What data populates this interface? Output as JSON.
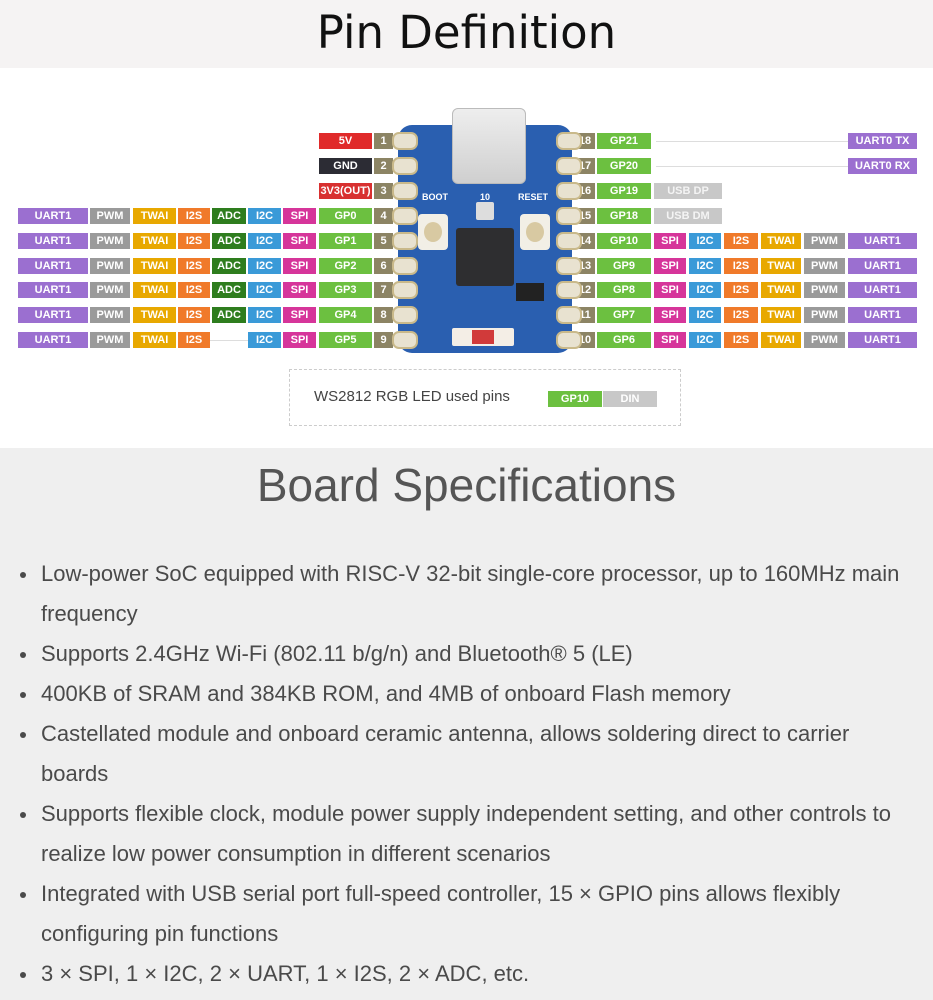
{
  "pin_definition": {
    "title": "Pin Definition",
    "colors": {
      "UART": "#9b6fd0",
      "PWM": "#9a9a9a",
      "TWAI": "#e8a800",
      "I2S": "#f07a2a",
      "ADC": "#2e7d1e",
      "I2C": "#3a9ad8",
      "SPI": "#d6359a",
      "GP": "#6cc040",
      "num": "#8c8464",
      "5V": "#e02a2a",
      "GND": "#2c2c34",
      "3V3": "#d83030",
      "USB": "#c8c8c8",
      "DIN": "#c8c8c8"
    },
    "board_labels": {
      "boot": "BOOT",
      "led": "10",
      "reset": "RESET"
    },
    "left_pins": [
      {
        "num": "1",
        "name": "5V",
        "funcs": []
      },
      {
        "num": "2",
        "name": "GND",
        "funcs": []
      },
      {
        "num": "3",
        "name": "3V3(OUT)",
        "funcs": []
      },
      {
        "num": "4",
        "name": "GP0",
        "funcs": [
          "UART1",
          "PWM",
          "TWAI",
          "I2S",
          "ADC",
          "I2C",
          "SPI"
        ]
      },
      {
        "num": "5",
        "name": "GP1",
        "funcs": [
          "UART1",
          "PWM",
          "TWAI",
          "I2S",
          "ADC",
          "I2C",
          "SPI"
        ]
      },
      {
        "num": "6",
        "name": "GP2",
        "funcs": [
          "UART1",
          "PWM",
          "TWAI",
          "I2S",
          "ADC",
          "I2C",
          "SPI"
        ]
      },
      {
        "num": "7",
        "name": "GP3",
        "funcs": [
          "UART1",
          "PWM",
          "TWAI",
          "I2S",
          "ADC",
          "I2C",
          "SPI"
        ]
      },
      {
        "num": "8",
        "name": "GP4",
        "funcs": [
          "UART1",
          "PWM",
          "TWAI",
          "I2S",
          "ADC",
          "I2C",
          "SPI"
        ]
      },
      {
        "num": "9",
        "name": "GP5",
        "funcs": [
          "UART1",
          "PWM",
          "TWAI",
          "I2S",
          null,
          "I2C",
          "SPI"
        ]
      }
    ],
    "right_pins": [
      {
        "num": "18",
        "name": "GP21",
        "funcs": [
          null,
          null,
          null,
          null,
          null,
          "UART0 TX"
        ]
      },
      {
        "num": "17",
        "name": "GP20",
        "funcs": [
          null,
          null,
          null,
          null,
          null,
          "UART0 RX"
        ]
      },
      {
        "num": "16",
        "name": "GP19",
        "funcs": [
          "USB DP"
        ]
      },
      {
        "num": "15",
        "name": "GP18",
        "funcs": [
          "USB DM"
        ]
      },
      {
        "num": "14",
        "name": "GP10",
        "funcs": [
          "SPI",
          "I2C",
          "I2S",
          "TWAI",
          "PWM",
          "UART1"
        ]
      },
      {
        "num": "13",
        "name": "GP9",
        "funcs": [
          "SPI",
          "I2C",
          "I2S",
          "TWAI",
          "PWM",
          "UART1"
        ]
      },
      {
        "num": "12",
        "name": "GP8",
        "funcs": [
          "SPI",
          "I2C",
          "I2S",
          "TWAI",
          "PWM",
          "UART1"
        ]
      },
      {
        "num": "11",
        "name": "GP7",
        "funcs": [
          "SPI",
          "I2C",
          "I2S",
          "TWAI",
          "PWM",
          "UART1"
        ]
      },
      {
        "num": "10",
        "name": "GP6",
        "funcs": [
          "SPI",
          "I2C",
          "I2S",
          "TWAI",
          "PWM",
          "UART1"
        ]
      }
    ],
    "led_note": {
      "text": "WS2812 RGB LED used pins",
      "pin": "GP10",
      "signal": "DIN"
    }
  },
  "board_specifications": {
    "title": "Board Specifications",
    "items": [
      "Low-power SoC equipped with RISC-V 32-bit single-core processor, up to 160MHz main frequency",
      "Supports 2.4GHz Wi-Fi (802.11 b/g/n) and Bluetooth® 5 (LE)",
      "400KB of SRAM and 384KB ROM, and 4MB of onboard Flash memory",
      "Castellated module and onboard ceramic antenna, allows soldering direct to carrier boards",
      "Supports flexible clock, module power supply independent setting, and other controls to realize low power consumption in different scenarios",
      "Integrated with USB serial port full-speed controller, 15 × GPIO pins allows flexibly configuring pin functions",
      "3 × SPI, 1 × I2C, 2 × UART, 1 × I2S, 2 × ADC, etc."
    ]
  }
}
